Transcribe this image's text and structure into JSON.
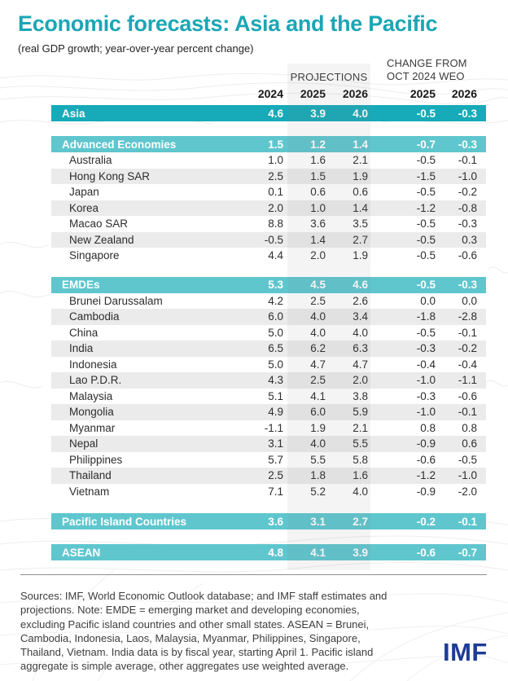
{
  "page": {
    "title": "Economic forecasts: Asia and the Pacific",
    "subtitle": "(real GDP growth; year-over-year percent change)"
  },
  "table": {
    "projections_label": "PROJECTIONS",
    "change_from_line1": "CHANGE FROM",
    "change_from_line2": "OCT 2024 WEO",
    "columns": [
      "2024",
      "2025",
      "2026",
      "2025",
      "2026"
    ]
  },
  "chart_data": {
    "type": "table",
    "title": "Economic forecasts: Asia and the Pacific",
    "subtitle": "(real GDP growth; year-over-year percent change)",
    "column_groups": [
      "",
      "PROJECTIONS",
      "CHANGE FROM OCT 2024 WEO"
    ],
    "columns": [
      "2024",
      "2025 projection",
      "2026 projection",
      "2025 change from Oct 2024 WEO",
      "2026 change from Oct 2024 WEO"
    ],
    "rows": [
      {
        "style": "total",
        "label": "Asia",
        "values": [
          "4.6",
          "3.9",
          "4.0",
          "-0.5",
          "-0.3"
        ]
      },
      {
        "style": "section",
        "label": "Advanced Economies",
        "values": [
          "1.5",
          "1.2",
          "1.4",
          "-0.7",
          "-0.3"
        ]
      },
      {
        "style": "country",
        "label": "Australia",
        "values": [
          "1.0",
          "1.6",
          "2.1",
          "-0.5",
          "-0.1"
        ]
      },
      {
        "style": "country",
        "label": "Hong Kong SAR",
        "values": [
          "2.5",
          "1.5",
          "1.9",
          "-1.5",
          "-1.0"
        ]
      },
      {
        "style": "country",
        "label": "Japan",
        "values": [
          "0.1",
          "0.6",
          "0.6",
          "-0.5",
          "-0.2"
        ]
      },
      {
        "style": "country",
        "label": "Korea",
        "values": [
          "2.0",
          "1.0",
          "1.4",
          "-1.2",
          "-0.8"
        ]
      },
      {
        "style": "country",
        "label": "Macao SAR",
        "values": [
          "8.8",
          "3.6",
          "3.5",
          "-0.5",
          "-0.3"
        ]
      },
      {
        "style": "country",
        "label": "New Zealand",
        "values": [
          "-0.5",
          "1.4",
          "2.7",
          "-0.5",
          "0.3"
        ]
      },
      {
        "style": "country",
        "label": "Singapore",
        "values": [
          "4.4",
          "2.0",
          "1.9",
          "-0.5",
          "-0.6"
        ]
      },
      {
        "style": "section",
        "label": "EMDEs",
        "values": [
          "5.3",
          "4.5",
          "4.6",
          "-0.5",
          "-0.3"
        ]
      },
      {
        "style": "country",
        "label": "Brunei Darussalam",
        "values": [
          "4.2",
          "2.5",
          "2.6",
          "0.0",
          "0.0"
        ]
      },
      {
        "style": "country",
        "label": "Cambodia",
        "values": [
          "6.0",
          "4.0",
          "3.4",
          "-1.8",
          "-2.8"
        ]
      },
      {
        "style": "country",
        "label": "China",
        "values": [
          "5.0",
          "4.0",
          "4.0",
          "-0.5",
          "-0.1"
        ]
      },
      {
        "style": "country",
        "label": "India",
        "values": [
          "6.5",
          "6.2",
          "6.3",
          "-0.3",
          "-0.2"
        ]
      },
      {
        "style": "country",
        "label": "Indonesia",
        "values": [
          "5.0",
          "4.7",
          "4.7",
          "-0.4",
          "-0.4"
        ]
      },
      {
        "style": "country",
        "label": "Lao P.D.R.",
        "values": [
          "4.3",
          "2.5",
          "2.0",
          "-1.0",
          "-1.1"
        ]
      },
      {
        "style": "country",
        "label": "Malaysia",
        "values": [
          "5.1",
          "4.1",
          "3.8",
          "-0.3",
          "-0.6"
        ]
      },
      {
        "style": "country",
        "label": "Mongolia",
        "values": [
          "4.9",
          "6.0",
          "5.9",
          "-1.0",
          "-0.1"
        ]
      },
      {
        "style": "country",
        "label": "Myanmar",
        "values": [
          "-1.1",
          "1.9",
          "2.1",
          "0.8",
          "0.8"
        ]
      },
      {
        "style": "country",
        "label": "Nepal",
        "values": [
          "3.1",
          "4.0",
          "5.5",
          "-0.9",
          "0.6"
        ]
      },
      {
        "style": "country",
        "label": "Philippines",
        "values": [
          "5.7",
          "5.5",
          "5.8",
          "-0.6",
          "-0.5"
        ]
      },
      {
        "style": "country",
        "label": "Thailand",
        "values": [
          "2.5",
          "1.8",
          "1.6",
          "-1.2",
          "-1.0"
        ]
      },
      {
        "style": "country",
        "label": "Vietnam",
        "values": [
          "7.1",
          "5.2",
          "4.0",
          "-0.9",
          "-2.0"
        ]
      },
      {
        "style": "section",
        "label": "Pacific Island Countries",
        "values": [
          "3.6",
          "3.1",
          "2.7",
          "-0.2",
          "-0.1"
        ]
      },
      {
        "style": "section",
        "label": "ASEAN",
        "values": [
          "4.8",
          "4.1",
          "3.9",
          "-0.6",
          "-0.7"
        ]
      }
    ]
  },
  "footer": {
    "sources": "Sources: IMF, World Economic Outlook database; and IMF staff estimates and projections. Note: EMDE = emerging market and developing economies, excluding Pacific island countries and other small states. ASEAN = Brunei, Cambodia, Indonesia, Laos, Malaysia, Myanmar, Philippines, Singapore, Thailand, Vietnam. India data is by fiscal year, starting April 1. Pacific island aggregate is simple average, other aggregates use weighted average.",
    "logo_text": "IMF"
  },
  "colors": {
    "title_teal": "#1ba6b5",
    "total_row_teal": "#17aab8",
    "section_row_teal": "#5fc6ce",
    "alt_row_gray": "#ebebeb",
    "imf_blue": "#1e3c96"
  }
}
